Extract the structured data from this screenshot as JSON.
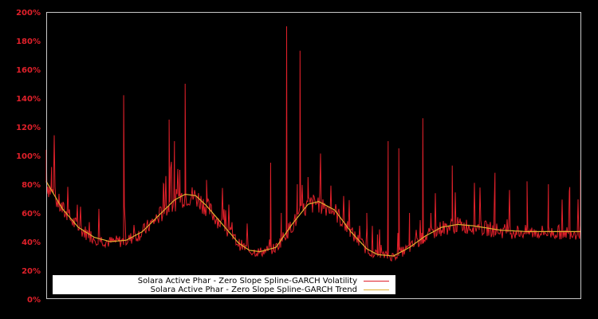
{
  "chart_data": {
    "type": "line",
    "title": "",
    "xlabel": "",
    "ylabel": "",
    "ylim": [
      0,
      200
    ],
    "y_ticks": [
      "0%",
      "20%",
      "40%",
      "60%",
      "80%",
      "100%",
      "120%",
      "140%",
      "160%",
      "180%",
      "200%"
    ],
    "y_tick_values": [
      0,
      20,
      40,
      60,
      80,
      100,
      120,
      140,
      160,
      180,
      200
    ],
    "grid": false,
    "legend_position": "lower-left",
    "series": [
      {
        "name": "Solara Active Phar - Zero Slope Spline-GARCH Volatility",
        "color": "#e0202a",
        "x_frac": [
          0.0,
          0.01,
          0.02,
          0.04,
          0.06,
          0.08,
          0.1,
          0.12,
          0.14,
          0.145,
          0.15,
          0.16,
          0.18,
          0.2,
          0.22,
          0.23,
          0.24,
          0.25,
          0.26,
          0.27,
          0.275,
          0.28,
          0.29,
          0.3,
          0.32,
          0.34,
          0.36,
          0.38,
          0.4,
          0.42,
          0.44,
          0.45,
          0.47,
          0.475,
          0.48,
          0.49,
          0.5,
          0.52,
          0.54,
          0.56,
          0.58,
          0.6,
          0.62,
          0.64,
          0.66,
          0.68,
          0.7,
          0.705,
          0.72,
          0.74,
          0.75,
          0.76,
          0.78,
          0.8,
          0.82,
          0.84,
          0.86,
          0.88,
          0.9,
          0.92,
          0.94,
          0.96,
          0.98,
          1.0
        ],
        "values": [
          104,
          92,
          70,
          60,
          55,
          50,
          45,
          42,
          40,
          142,
          41,
          45,
          50,
          60,
          80,
          125,
          110,
          90,
          150,
          85,
          75,
          70,
          65,
          83,
          55,
          42,
          38,
          36,
          35,
          95,
          60,
          190,
          80,
          173,
          70,
          85,
          60,
          50,
          40,
          35,
          50,
          60,
          45,
          110,
          105,
          60,
          55,
          126,
          60,
          58,
          55,
          93,
          55,
          52,
          50,
          88,
          55,
          50,
          82,
          55,
          80,
          50,
          78,
          90
        ]
      },
      {
        "name": "Solara Active Phar - Zero Slope Spline-GARCH Trend",
        "color": "#e0b030",
        "x_frac": [
          0.0,
          0.03,
          0.06,
          0.09,
          0.12,
          0.15,
          0.18,
          0.21,
          0.24,
          0.26,
          0.28,
          0.3,
          0.33,
          0.36,
          0.38,
          0.4,
          0.43,
          0.46,
          0.49,
          0.51,
          0.54,
          0.57,
          0.6,
          0.62,
          0.65,
          0.68,
          0.71,
          0.74,
          0.77,
          0.8,
          0.85,
          0.9,
          0.95,
          1.0
        ],
        "values": [
          82,
          63,
          50,
          43,
          40,
          41,
          47,
          58,
          69,
          73,
          72,
          65,
          52,
          39,
          34,
          33,
          36,
          52,
          66,
          68,
          62,
          47,
          35,
          31,
          30,
          36,
          44,
          50,
          52,
          51,
          48,
          47,
          47,
          47
        ]
      }
    ]
  },
  "legend": {
    "volatility_label": "Solara Active Phar - Zero Slope Spline-GARCH Volatility",
    "trend_label": "Solara Active Phar - Zero Slope Spline-GARCH Trend"
  },
  "colors": {
    "background": "#000000",
    "axis": "#c8c8c8",
    "tick_text": "#e0202a",
    "volatility": "#e0202a",
    "trend": "#e0b030"
  }
}
